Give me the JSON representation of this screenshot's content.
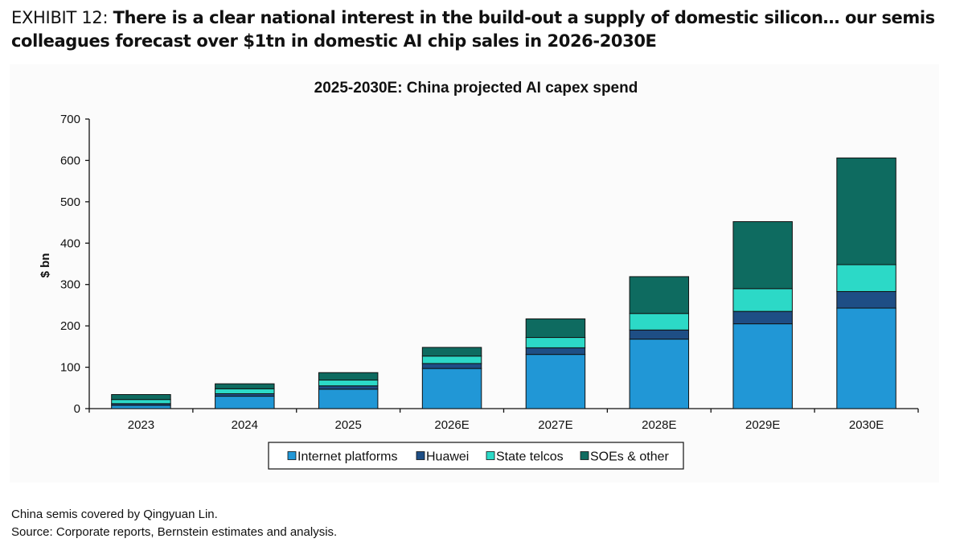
{
  "exhibit": {
    "label": "EXHIBIT 12: ",
    "headline": "There is a clear national interest in the build-out a supply of domestic silicon… our semis colleagues forecast over $1tn in domestic AI chip sales in 2026-2030E"
  },
  "footnotes": {
    "coverage": "China semis covered by Qingyuan Lin.",
    "source": "Source: Corporate reports, Bernstein estimates and analysis."
  },
  "colors": {
    "internet_platforms": "#2197D6",
    "huawei": "#1E4E85",
    "state_telcos": "#2CD9C7",
    "soes_other": "#0E6B60"
  },
  "chart_data": {
    "type": "bar",
    "stacked": true,
    "title": "2025-2030E: China projected AI capex spend",
    "xlabel": "",
    "ylabel": "$ bn",
    "ylim": [
      0,
      700
    ],
    "yticks": [
      0,
      100,
      200,
      300,
      400,
      500,
      600,
      700
    ],
    "grid": false,
    "legend_position": "bottom",
    "categories": [
      "2023",
      "2024",
      "2025",
      "2026E",
      "2027E",
      "2028E",
      "2029E",
      "2030E"
    ],
    "series": [
      {
        "name": "Internet platforms",
        "color": "#2197D6",
        "values": [
          8,
          30,
          47,
          97,
          131,
          168,
          205,
          243
        ]
      },
      {
        "name": "Huawei",
        "color": "#1E4E85",
        "values": [
          4,
          6,
          8,
          12,
          16,
          22,
          30,
          40
        ]
      },
      {
        "name": "State telcos",
        "color": "#2CD9C7",
        "values": [
          10,
          12,
          14,
          18,
          25,
          40,
          55,
          65
        ]
      },
      {
        "name": "SOEs & other",
        "color": "#0E6B60",
        "values": [
          12,
          12,
          18,
          21,
          45,
          89,
          162,
          258
        ]
      }
    ]
  }
}
